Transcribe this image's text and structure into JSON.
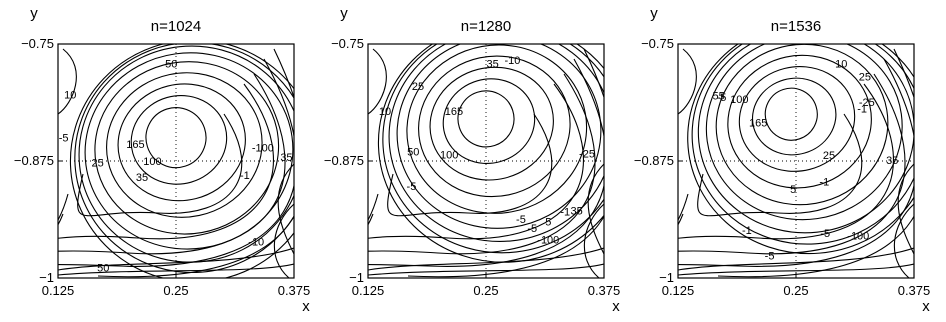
{
  "chart_data": [
    {
      "type": "contour",
      "title": "n=1024",
      "xlabel": "x",
      "ylabel": "y",
      "xlim": [
        0.125,
        0.375
      ],
      "ylim": [
        -1,
        -0.75
      ],
      "xticks": [
        "0.125",
        "0.25",
        "0.375"
      ],
      "yticks": [
        "-0.75",
        "-0.875",
        "-1"
      ],
      "grid": "dotted crosshair at x=0.25, y=-0.875",
      "vortex_center": [
        0.25,
        -0.85
      ],
      "contour_labels": [
        {
          "text": "50",
          "x": 0.245,
          "y": -0.772
        },
        {
          "text": "10",
          "x": 0.138,
          "y": -0.805
        },
        {
          "text": "-5",
          "x": 0.131,
          "y": -0.851
        },
        {
          "text": "165",
          "x": 0.207,
          "y": -0.858
        },
        {
          "text": "100",
          "x": 0.225,
          "y": -0.876
        },
        {
          "text": "25",
          "x": 0.167,
          "y": -0.878
        },
        {
          "text": "35",
          "x": 0.214,
          "y": -0.893
        },
        {
          "text": "-100",
          "x": 0.342,
          "y": -0.862
        },
        {
          "text": "35",
          "x": 0.367,
          "y": -0.872
        },
        {
          "text": "-1",
          "x": 0.323,
          "y": -0.891
        },
        {
          "text": "-10",
          "x": 0.335,
          "y": -0.962
        },
        {
          "text": "50",
          "x": 0.173,
          "y": -0.99
        }
      ]
    },
    {
      "type": "contour",
      "title": "n=1280",
      "xlabel": "x",
      "ylabel": "y",
      "xlim": [
        0.125,
        0.375
      ],
      "ylim": [
        -1,
        -0.75
      ],
      "xticks": [
        "0.125",
        "0.25",
        "0.375"
      ],
      "yticks": [
        "-0.75",
        "-0.875",
        "-1"
      ],
      "grid": "dotted crosshair at x=0.25, y=-0.875",
      "vortex_center": [
        0.25,
        -0.83
      ],
      "contour_labels": [
        {
          "text": "35",
          "x": 0.257,
          "y": -0.772
        },
        {
          "text": "-10",
          "x": 0.278,
          "y": -0.768
        },
        {
          "text": "25",
          "x": 0.178,
          "y": -0.796
        },
        {
          "text": "165",
          "x": 0.216,
          "y": -0.823
        },
        {
          "text": "10",
          "x": 0.143,
          "y": -0.823
        },
        {
          "text": "50",
          "x": 0.173,
          "y": -0.866
        },
        {
          "text": "100",
          "x": 0.211,
          "y": -0.869
        },
        {
          "text": "-5",
          "x": 0.171,
          "y": -0.903
        },
        {
          "text": "-25",
          "x": 0.357,
          "y": -0.868
        },
        {
          "text": "-5",
          "x": 0.287,
          "y": -0.938
        },
        {
          "text": "-5",
          "x": 0.299,
          "y": -0.948
        },
        {
          "text": "-100",
          "x": 0.316,
          "y": -0.96
        },
        {
          "text": "5",
          "x": 0.316,
          "y": -0.941
        },
        {
          "text": "-1",
          "x": 0.334,
          "y": -0.93
        },
        {
          "text": "35",
          "x": 0.346,
          "y": -0.929
        }
      ]
    },
    {
      "type": "contour",
      "title": "n=1536",
      "xlabel": "x",
      "ylabel": "y",
      "xlim": [
        0.125,
        0.375
      ],
      "ylim": [
        -1,
        -0.75
      ],
      "xticks": [
        "0.125",
        "0.25",
        "0.375"
      ],
      "yticks": [
        "-0.75",
        "-0.875",
        "-1"
      ],
      "grid": "dotted crosshair at x=0.25, y=-0.875",
      "vortex_center": [
        0.245,
        -0.825
      ],
      "contour_labels": [
        {
          "text": "10",
          "x": 0.298,
          "y": -0.772
        },
        {
          "text": "25",
          "x": 0.323,
          "y": -0.786
        },
        {
          "text": "-25",
          "x": 0.325,
          "y": -0.813
        },
        {
          "text": "-1",
          "x": 0.32,
          "y": -0.82
        },
        {
          "text": "55",
          "x": 0.168,
          "y": -0.806
        },
        {
          "text": "-5",
          "x": 0.171,
          "y": -0.808
        },
        {
          "text": "100",
          "x": 0.19,
          "y": -0.81
        },
        {
          "text": "165",
          "x": 0.21,
          "y": -0.835
        },
        {
          "text": "25",
          "x": 0.285,
          "y": -0.87
        },
        {
          "text": "35",
          "x": 0.352,
          "y": -0.875
        },
        {
          "text": "-1",
          "x": 0.28,
          "y": -0.898
        },
        {
          "text": "5",
          "x": 0.247,
          "y": -0.906
        },
        {
          "text": "-1",
          "x": 0.198,
          "y": -0.95
        },
        {
          "text": "-5",
          "x": 0.281,
          "y": -0.953
        },
        {
          "text": "-100",
          "x": 0.316,
          "y": -0.956
        },
        {
          "text": "-5",
          "x": 0.222,
          "y": -0.977
        }
      ]
    }
  ]
}
